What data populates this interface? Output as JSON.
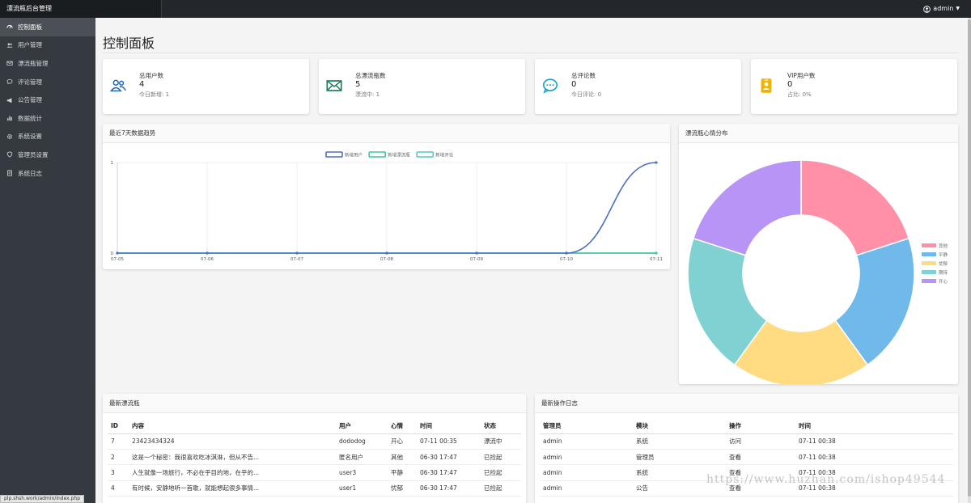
{
  "app": {
    "title": "漂流瓶后台管理",
    "user": "admin"
  },
  "sidebar": {
    "items": [
      {
        "label": "控制面板",
        "icon": "dashboard-icon",
        "active": true
      },
      {
        "label": "用户管理",
        "icon": "users-icon"
      },
      {
        "label": "漂流瓶管理",
        "icon": "envelope-icon"
      },
      {
        "label": "评论管理",
        "icon": "comment-icon"
      },
      {
        "label": "公告管理",
        "icon": "megaphone-icon"
      },
      {
        "label": "数据统计",
        "icon": "bar-chart-icon"
      },
      {
        "label": "系统设置",
        "icon": "gear-icon"
      },
      {
        "label": "管理员设置",
        "icon": "shield-icon"
      },
      {
        "label": "系统日志",
        "icon": "log-icon"
      }
    ]
  },
  "page": {
    "title": "控制面板"
  },
  "stats": [
    {
      "label": "总用户数",
      "value": "4",
      "sub": "今日新增: 1",
      "icon": "users-icon",
      "color": "#1e64b4"
    },
    {
      "label": "总漂流瓶数",
      "value": "5",
      "sub": "漂流中: 1",
      "icon": "envelope-icon",
      "color": "#1c7a5a"
    },
    {
      "label": "总评论数",
      "value": "0",
      "sub": "今日评论: 0",
      "icon": "comment-icon",
      "color": "#17a2c8"
    },
    {
      "label": "VIP用户数",
      "value": "0",
      "sub": "占比: 0%",
      "icon": "vip-card-icon",
      "color": "#f0b400"
    }
  ],
  "trend": {
    "title": "最近7天数据趋势"
  },
  "mood": {
    "title": "漂流瓶心情分布"
  },
  "chart_data": [
    {
      "type": "line",
      "title": "最近7天数据趋势",
      "categories": [
        "07-05",
        "07-06",
        "07-07",
        "07-08",
        "07-09",
        "07-10",
        "07-11"
      ],
      "series": [
        {
          "name": "新增用户",
          "values": [
            0,
            0,
            0,
            0,
            0,
            0,
            1
          ],
          "color": "#4a6fc9"
        },
        {
          "name": "新增漂流瓶",
          "values": [
            0,
            0,
            0,
            0,
            0,
            0,
            0
          ],
          "color": "#40c49b"
        },
        {
          "name": "新增评论",
          "values": [
            0,
            0,
            0,
            0,
            0,
            0,
            0
          ],
          "color": "#4fc7d1"
        }
      ],
      "ylim": [
        0,
        1
      ],
      "yticks": [
        "0",
        "1"
      ],
      "legend": "top-center",
      "grid": true
    },
    {
      "type": "pie",
      "title": "漂流瓶心情分布",
      "labels": [
        "其他",
        "平静",
        "忧郁",
        "期待",
        "开心"
      ],
      "values": [
        1,
        1,
        1,
        1,
        1
      ],
      "colors": [
        "#ff90a8",
        "#6fbaeb",
        "#ffdb82",
        "#7fd1d2",
        "#b794f6"
      ],
      "donut": true,
      "legend": "right"
    }
  ],
  "bottles": {
    "title": "最新漂流瓶",
    "columns": [
      "ID",
      "内容",
      "用户",
      "心情",
      "时间",
      "状态"
    ],
    "rows": [
      [
        "7",
        "23423434324",
        "dododog",
        "开心",
        "07-11 00:35",
        "漂流中"
      ],
      [
        "2",
        "这是一个秘密：我很喜欢吃冰淇淋，但从不告...",
        "匿名用户",
        "其他",
        "06-30 17:47",
        "已捡起"
      ],
      [
        "3",
        "人生就像一场旅行，不必在乎目的地，在乎的...",
        "user3",
        "平静",
        "06-30 17:47",
        "已捡起"
      ],
      [
        "4",
        "有时候，安静地听一首歌，就能想起很多事情...",
        "user1",
        "忧郁",
        "06-30 17:47",
        "已捡起"
      ]
    ]
  },
  "logs": {
    "title": "最新操作日志",
    "columns": [
      "管理员",
      "模块",
      "操作",
      "时间"
    ],
    "rows": [
      [
        "admin",
        "系统",
        "访问",
        "07-11 00:38"
      ],
      [
        "admin",
        "管理员",
        "查看",
        "07-11 00:38"
      ],
      [
        "admin",
        "系统",
        "查看",
        "07-11 00:38"
      ],
      [
        "admin",
        "公告",
        "查看",
        "07-11 00:38"
      ]
    ]
  },
  "status_url": "plp.shsh.work/admin/index.php",
  "watermark": "https://www.huzhan.com/ishop49544"
}
